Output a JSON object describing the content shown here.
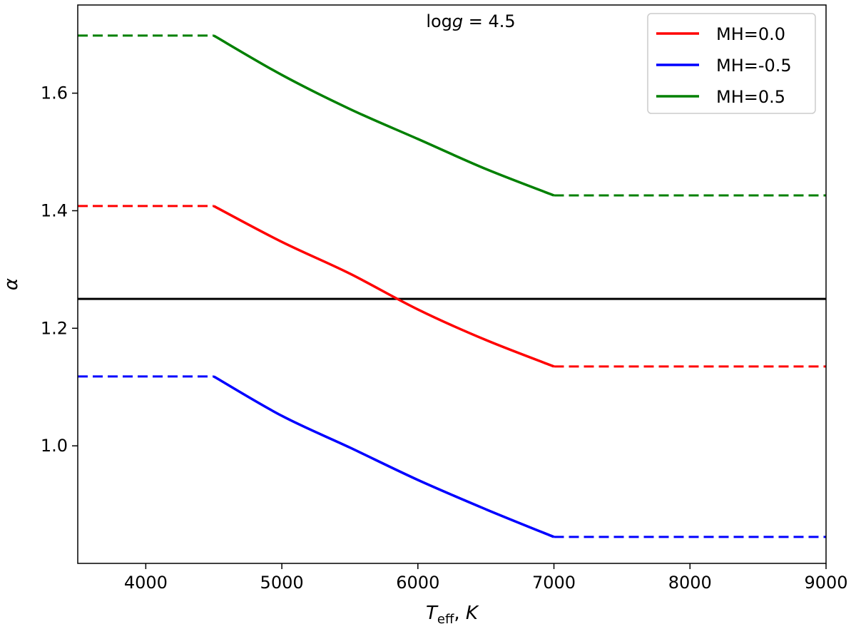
{
  "chart_data": {
    "type": "line",
    "annotation": "log g = 4.5",
    "xlabel": "T_eff, K",
    "ylabel": "α",
    "xlim": [
      3500,
      9000
    ],
    "ylim": [
      0.8,
      1.75
    ],
    "x_ticks": [
      4000,
      5000,
      6000,
      7000,
      8000,
      9000
    ],
    "y_ticks": [
      1.0,
      1.2,
      1.4,
      1.6
    ],
    "legend_position": "top-right",
    "grid": false,
    "reference_line": {
      "y": 1.25,
      "color": "#000000"
    },
    "series": [
      {
        "name": "MH=0.0",
        "color": "#ff0000",
        "solid": {
          "x": [
            4500,
            5000,
            5500,
            6000,
            6500,
            7000
          ],
          "y": [
            1.408,
            1.347,
            1.293,
            1.232,
            1.18,
            1.135
          ]
        },
        "dashed_left": {
          "x": [
            3500,
            4500
          ],
          "y": [
            1.408,
            1.408
          ]
        },
        "dashed_right": {
          "x": [
            7000,
            9000
          ],
          "y": [
            1.135,
            1.135
          ]
        }
      },
      {
        "name": "MH=-0.5",
        "color": "#0000ff",
        "solid": {
          "x": [
            4500,
            5000,
            5500,
            6000,
            6500,
            7000
          ],
          "y": [
            1.118,
            1.051,
            0.997,
            0.942,
            0.892,
            0.845
          ]
        },
        "dashed_left": {
          "x": [
            3500,
            4500
          ],
          "y": [
            1.118,
            1.118
          ]
        },
        "dashed_right": {
          "x": [
            7000,
            9000
          ],
          "y": [
            0.845,
            0.845
          ]
        }
      },
      {
        "name": "MH=0.5",
        "color": "#008000",
        "solid": {
          "x": [
            4500,
            5000,
            5500,
            6000,
            6500,
            7000
          ],
          "y": [
            1.698,
            1.631,
            1.573,
            1.522,
            1.471,
            1.426
          ]
        },
        "dashed_left": {
          "x": [
            3500,
            4500
          ],
          "y": [
            1.698,
            1.698
          ]
        },
        "dashed_right": {
          "x": [
            7000,
            9000
          ],
          "y": [
            1.426,
            1.426
          ]
        }
      }
    ]
  }
}
